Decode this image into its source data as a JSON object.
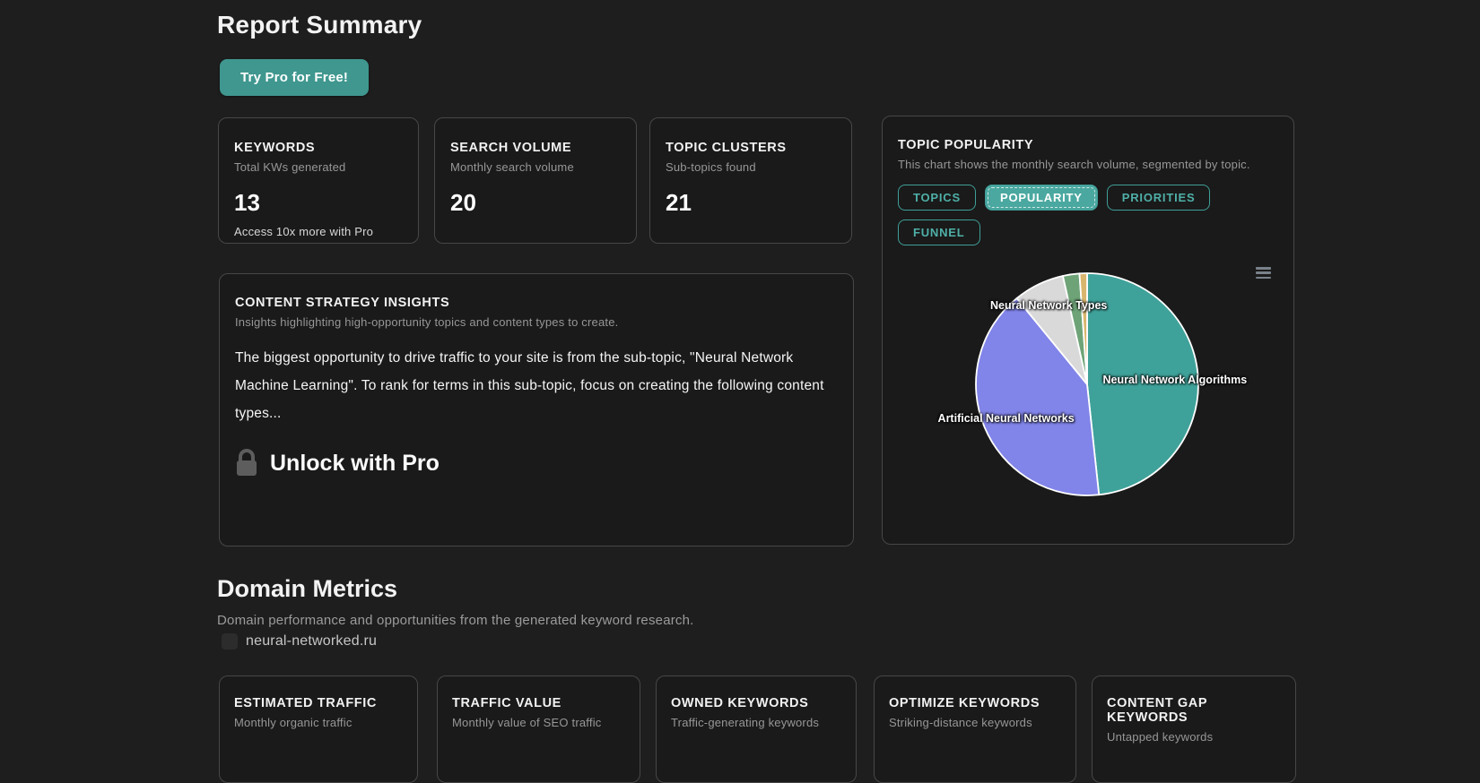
{
  "header": {
    "title": "Report Summary",
    "cta_label": "Try Pro for Free!"
  },
  "stat_cards": [
    {
      "title": "KEYWORDS",
      "subtitle": "Total KWs generated",
      "value": "13",
      "footnote": "Access 10x more with Pro"
    },
    {
      "title": "SEARCH VOLUME",
      "subtitle": "Monthly search volume",
      "value": "20"
    },
    {
      "title": "TOPIC CLUSTERS",
      "subtitle": "Sub-topics found",
      "value": "21"
    }
  ],
  "insights": {
    "title": "CONTENT STRATEGY INSIGHTS",
    "subtitle": "Insights highlighting high-opportunity topics and content types to create.",
    "body": "The biggest opportunity to drive traffic to your site is from the sub-topic, \"Neural Network Machine Learning\". To rank for terms in this sub-topic, focus on creating the following content types...",
    "unlock_label": "Unlock with Pro"
  },
  "topic_popularity": {
    "title": "TOPIC POPULARITY",
    "subtitle": "This chart shows the monthly search volume, segmented by topic.",
    "tabs": [
      {
        "label": "TOPICS",
        "active": false
      },
      {
        "label": "POPULARITY",
        "active": true
      },
      {
        "label": "PRIORITIES",
        "active": false
      },
      {
        "label": "FUNNEL",
        "active": false
      }
    ]
  },
  "chart_data": {
    "type": "pie",
    "title": "TOPIC POPULARITY",
    "description": "Monthly search volume segmented by topic",
    "legend_position": "none",
    "start_angle_deg": 0,
    "direction": "clockwise",
    "slices": [
      {
        "name": "Neural Network Algorithms",
        "pct": 48.3,
        "color": "#3fa29a",
        "label": true
      },
      {
        "name": "Artificial Neural Networks",
        "pct": 40.8,
        "color": "#8184e8",
        "label": true
      },
      {
        "name": "Neural Network Types",
        "pct": 7.4,
        "color": "#d9d9d9",
        "label": true
      },
      {
        "name": "",
        "pct": 2.4,
        "color": "#6ea377",
        "label": false
      },
      {
        "name": "",
        "pct": 1.1,
        "color": "#d9b66e",
        "label": false
      }
    ]
  },
  "domain_metrics": {
    "heading": "Domain Metrics",
    "subtitle": "Domain performance and opportunities from the generated keyword research.",
    "domain": "neural-networked.ru"
  },
  "bottom_cards": [
    {
      "title": "ESTIMATED TRAFFIC",
      "subtitle": "Monthly organic traffic"
    },
    {
      "title": "TRAFFIC VALUE",
      "subtitle": "Monthly value of SEO traffic"
    },
    {
      "title": "OWNED KEYWORDS",
      "subtitle": "Traffic-generating keywords"
    },
    {
      "title": "OPTIMIZE KEYWORDS",
      "subtitle": "Striking-distance keywords"
    },
    {
      "title": "CONTENT GAP KEYWORDS",
      "subtitle": "Untapped keywords"
    }
  ],
  "colors": {
    "accent_teal": "#3f978f",
    "tab_teal": "#4fb0a8",
    "active_tab_bg": "#4aa8a0",
    "page_bg": "#1e1e1e",
    "card_bg": "#1a1a1a",
    "card_border": "#474747"
  },
  "icons": {
    "lock": "lock-icon",
    "chart_menu": "hamburger-menu-icon",
    "domain_favicon": "favicon-placeholder"
  }
}
